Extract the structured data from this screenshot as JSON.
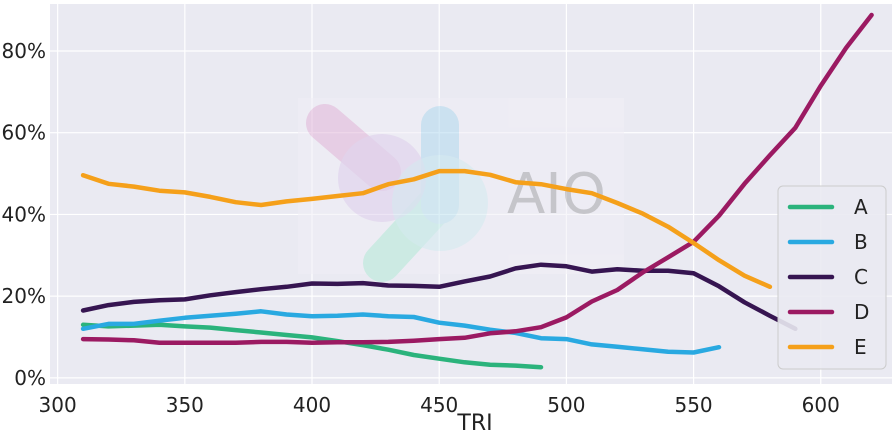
{
  "chart_data": {
    "type": "line",
    "xlabel": "TRI",
    "ylabel": "",
    "xlim": [
      297,
      628
    ],
    "ylim": [
      -0.015,
      0.915
    ],
    "x_ticks": [
      300,
      350,
      400,
      450,
      500,
      550,
      600
    ],
    "y_ticks": [
      0,
      0.2,
      0.4,
      0.6,
      0.8
    ],
    "x_tick_labels": [
      "300",
      "350",
      "400",
      "450",
      "500",
      "550",
      "600"
    ],
    "y_tick_labels": [
      "0%",
      "20%",
      "40%",
      "60%",
      "80%"
    ],
    "grid": true,
    "legend_position": "right",
    "watermark": "AIO",
    "series": [
      {
        "name": "A",
        "color": "#2bb37c",
        "x": [
          310,
          320,
          330,
          340,
          350,
          360,
          370,
          380,
          390,
          400,
          410,
          420,
          430,
          440,
          450,
          460,
          470,
          480,
          490
        ],
        "y": [
          0.13,
          0.126,
          0.128,
          0.13,
          0.126,
          0.123,
          0.117,
          0.111,
          0.105,
          0.099,
          0.09,
          0.08,
          0.069,
          0.056,
          0.047,
          0.038,
          0.032,
          0.03,
          0.026
        ]
      },
      {
        "name": "B",
        "color": "#29a9e1",
        "x": [
          310,
          320,
          330,
          340,
          350,
          360,
          370,
          380,
          390,
          400,
          410,
          420,
          430,
          440,
          450,
          460,
          470,
          480,
          490,
          500,
          510,
          520,
          530,
          540,
          550,
          560
        ],
        "y": [
          0.12,
          0.132,
          0.132,
          0.14,
          0.147,
          0.152,
          0.157,
          0.163,
          0.155,
          0.151,
          0.152,
          0.155,
          0.151,
          0.149,
          0.135,
          0.128,
          0.118,
          0.11,
          0.097,
          0.095,
          0.082,
          0.076,
          0.07,
          0.064,
          0.062,
          0.075
        ]
      },
      {
        "name": "C",
        "color": "#361551",
        "x": [
          310,
          320,
          330,
          340,
          350,
          360,
          370,
          380,
          390,
          400,
          410,
          420,
          430,
          440,
          450,
          460,
          470,
          480,
          490,
          500,
          510,
          520,
          530,
          540,
          550,
          560,
          570,
          580,
          590
        ],
        "y": [
          0.165,
          0.178,
          0.186,
          0.19,
          0.192,
          0.202,
          0.21,
          0.217,
          0.223,
          0.231,
          0.23,
          0.232,
          0.226,
          0.225,
          0.223,
          0.236,
          0.248,
          0.268,
          0.277,
          0.273,
          0.26,
          0.266,
          0.262,
          0.262,
          0.256,
          0.224,
          0.185,
          0.152,
          0.12
        ]
      },
      {
        "name": "D",
        "color": "#9b1a62",
        "x": [
          310,
          320,
          330,
          340,
          350,
          360,
          370,
          380,
          390,
          400,
          410,
          420,
          430,
          440,
          450,
          460,
          470,
          480,
          490,
          500,
          510,
          520,
          530,
          540,
          550,
          560,
          570,
          580,
          590,
          600,
          610,
          620
        ],
        "y": [
          0.095,
          0.094,
          0.092,
          0.086,
          0.086,
          0.086,
          0.086,
          0.088,
          0.088,
          0.086,
          0.087,
          0.087,
          0.088,
          0.091,
          0.095,
          0.098,
          0.109,
          0.114,
          0.124,
          0.148,
          0.187,
          0.215,
          0.258,
          0.295,
          0.333,
          0.397,
          0.475,
          0.545,
          0.612,
          0.715,
          0.808,
          0.888
        ]
      },
      {
        "name": "E",
        "color": "#f5a01a",
        "x": [
          310,
          320,
          330,
          340,
          350,
          360,
          370,
          380,
          390,
          400,
          410,
          420,
          430,
          440,
          450,
          460,
          470,
          480,
          490,
          500,
          510,
          520,
          530,
          540,
          550,
          560,
          570,
          580
        ],
        "y": [
          0.496,
          0.475,
          0.468,
          0.458,
          0.454,
          0.443,
          0.43,
          0.423,
          0.432,
          0.438,
          0.445,
          0.452,
          0.474,
          0.486,
          0.506,
          0.506,
          0.497,
          0.479,
          0.474,
          0.462,
          0.452,
          0.428,
          0.402,
          0.37,
          0.33,
          0.288,
          0.25,
          0.223
        ]
      }
    ]
  }
}
